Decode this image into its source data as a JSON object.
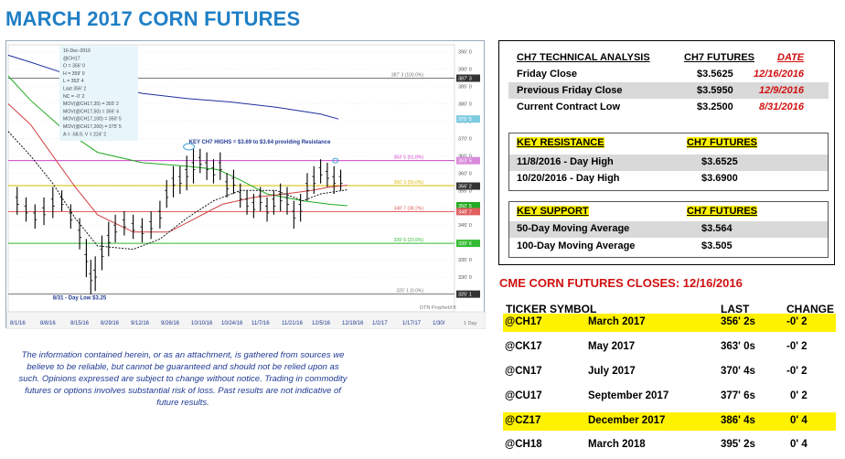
{
  "title": "MARCH 2017 CORN FUTURES",
  "chart_data": {
    "type": "candlestick",
    "symbol": "@CH17",
    "info_lines": [
      "16-Dec-2016",
      "@CH17",
      "O = 356' 0",
      "H = 359' 0",
      "L = 353' 4",
      "Last 356' 2",
      "NC = -0' 2",
      "MOV(@CH17,35) = 355' 2",
      "MOV(@CH17,50) = 356' 4",
      "MOV(@CH17,100) = 350' 5",
      "MOV(@CH17,200) = 375' 5",
      "A = -58.9, V = 224' 2"
    ],
    "y_ticks": [
      "395' 0",
      "390' 0",
      "385' 0",
      "380' 0",
      "375' 0",
      "370' 0",
      "365' 0",
      "360' 0",
      "355' 0",
      "350' 0",
      "345' 0",
      "340' 0",
      "335' 0",
      "330' 0",
      "325' 0"
    ],
    "x_ticks": [
      "8/1/16",
      "8/8/16",
      "8/15/16",
      "8/29/16",
      "9/12/16",
      "9/26/16",
      "10/10/16",
      "10/24/16",
      "11/7/16",
      "11/21/16",
      "12/5/16",
      "12/19/16",
      "1/2/17",
      "1/17/17",
      "1/30/"
    ],
    "ylim": [
      320,
      397
    ],
    "fib_levels": [
      {
        "label": "387' 3 (100.0%)",
        "value": 387.375,
        "color": "#777777"
      },
      {
        "label": "363' 5 (61.8%)",
        "value": 363.625,
        "color": "#cc44cc"
      },
      {
        "label": "356' 3 (50.0%)",
        "value": 356.375,
        "color": "#d9b800"
      },
      {
        "label": "348' 7 (38.2%)",
        "value": 348.875,
        "color": "#e06060"
      },
      {
        "label": "339' 6 (23.6%)",
        "value": 339.75,
        "color": "#33bb33"
      },
      {
        "label": "325' 1 (0.0%)",
        "value": 325.125,
        "color": "#777777"
      }
    ],
    "price_labels": [
      {
        "text": "387' 3",
        "value": 387.375,
        "color": "#333333"
      },
      {
        "text": "375' 5",
        "value": 375.6,
        "color": "#7ecbe0"
      },
      {
        "text": "363' 5",
        "value": 363.6,
        "color": "#d98ad9"
      },
      {
        "text": "356' 2",
        "value": 356.25,
        "color": "#333333"
      },
      {
        "text": "350' 5",
        "value": 350.6,
        "color": "#22aa22"
      },
      {
        "text": "348' 7",
        "value": 348.9,
        "color": "#e06060"
      },
      {
        "text": "339' 6",
        "value": 339.75,
        "color": "#33bb33"
      },
      {
        "text": "325' 1",
        "value": 325.1,
        "color": "#333333"
      }
    ],
    "moving_averages": [
      {
        "name": "MOV(@CH17,200)",
        "color": "#1f2fa0",
        "points": [
          [
            0,
            394
          ],
          [
            0.05,
            392
          ],
          [
            0.12,
            389
          ],
          [
            0.2,
            386
          ],
          [
            0.3,
            383
          ],
          [
            0.4,
            381.5
          ],
          [
            0.5,
            380.5
          ],
          [
            0.6,
            379
          ],
          [
            0.7,
            377
          ],
          [
            0.74,
            375.6
          ]
        ]
      },
      {
        "name": "MOV(@CH17,100)",
        "color": "#22aa22",
        "points": [
          [
            0,
            388
          ],
          [
            0.05,
            381
          ],
          [
            0.12,
            373
          ],
          [
            0.2,
            366
          ],
          [
            0.3,
            363
          ],
          [
            0.4,
            362
          ],
          [
            0.47,
            361
          ],
          [
            0.52,
            358
          ],
          [
            0.58,
            354
          ],
          [
            0.66,
            352
          ],
          [
            0.72,
            351
          ],
          [
            0.76,
            350.6
          ]
        ]
      },
      {
        "name": "MOV(@CH17,50)",
        "color": "#d04040",
        "points": [
          [
            0,
            380
          ],
          [
            0.05,
            374
          ],
          [
            0.1,
            365
          ],
          [
            0.15,
            356
          ],
          [
            0.2,
            348
          ],
          [
            0.28,
            343
          ],
          [
            0.36,
            343
          ],
          [
            0.42,
            347
          ],
          [
            0.48,
            351
          ],
          [
            0.55,
            353
          ],
          [
            0.62,
            354
          ],
          [
            0.68,
            355
          ],
          [
            0.72,
            356
          ],
          [
            0.76,
            356.5
          ]
        ]
      },
      {
        "name": "MOV(@CH17,35)",
        "color": "#111111",
        "points": [
          [
            0,
            372
          ],
          [
            0.05,
            365
          ],
          [
            0.1,
            357
          ],
          [
            0.15,
            347
          ],
          [
            0.2,
            339
          ],
          [
            0.28,
            338
          ],
          [
            0.34,
            341
          ],
          [
            0.4,
            347
          ],
          [
            0.46,
            352
          ],
          [
            0.52,
            355
          ],
          [
            0.6,
            355
          ],
          [
            0.66,
            352
          ],
          [
            0.7,
            354
          ],
          [
            0.76,
            355.2
          ]
        ]
      }
    ],
    "candles": [
      [
        0.02,
        348,
        356
      ],
      [
        0.04,
        346,
        353
      ],
      [
        0.06,
        344,
        351
      ],
      [
        0.08,
        345,
        353
      ],
      [
        0.1,
        347,
        356
      ],
      [
        0.12,
        349,
        355
      ],
      [
        0.14,
        344,
        351
      ],
      [
        0.16,
        338,
        347
      ],
      [
        0.175,
        330,
        341
      ],
      [
        0.185,
        325,
        335
      ],
      [
        0.195,
        326,
        336
      ],
      [
        0.21,
        332,
        342
      ],
      [
        0.225,
        336,
        346
      ],
      [
        0.24,
        340,
        348
      ],
      [
        0.26,
        342,
        349
      ],
      [
        0.28,
        341,
        348
      ],
      [
        0.3,
        340,
        347
      ],
      [
        0.32,
        341,
        349
      ],
      [
        0.34,
        344,
        352
      ],
      [
        0.355,
        350,
        358
      ],
      [
        0.37,
        353,
        362
      ],
      [
        0.385,
        354,
        362
      ],
      [
        0.4,
        355,
        365
      ],
      [
        0.415,
        357,
        367
      ],
      [
        0.43,
        360,
        367
      ],
      [
        0.445,
        358,
        366
      ],
      [
        0.46,
        357,
        364
      ],
      [
        0.475,
        358,
        366
      ],
      [
        0.49,
        353,
        360
      ],
      [
        0.505,
        354,
        361
      ],
      [
        0.52,
        350,
        357
      ],
      [
        0.535,
        348,
        355
      ],
      [
        0.55,
        347,
        354
      ],
      [
        0.565,
        349,
        356
      ],
      [
        0.58,
        346,
        353
      ],
      [
        0.595,
        348,
        355
      ],
      [
        0.61,
        349,
        357
      ],
      [
        0.625,
        348,
        356
      ],
      [
        0.64,
        344,
        352
      ],
      [
        0.655,
        346,
        354
      ],
      [
        0.67,
        352,
        360
      ],
      [
        0.685,
        354,
        362
      ],
      [
        0.7,
        357,
        364
      ],
      [
        0.715,
        356,
        363
      ],
      [
        0.73,
        354,
        362
      ],
      [
        0.745,
        355,
        361
      ]
    ],
    "annotations": [
      {
        "text": "KEY CH7 HIGHS = $3.69 to $3.64 providing Resistance",
        "x": 0.405,
        "y": 368.5
      },
      {
        "text": "8/31 - Day Low $3.25",
        "x": 0.1,
        "y": 323.5
      }
    ],
    "footer_labels": [
      "DTN  ProphetX®",
      "1 Day"
    ]
  },
  "technical": {
    "header_label": "CH7 TECHNICAL ANALYSIS",
    "header_futures": "CH7 FUTURES",
    "header_date": "DATE",
    "rows": [
      {
        "label": "Friday Close",
        "value": "$3.5625",
        "date": "12/16/2016"
      },
      {
        "label": "Previous Friday Close",
        "value": "$3.5950",
        "date": "12/9/2016"
      },
      {
        "label": "Current Contract Low",
        "value": "$3.2500",
        "date": "8/31/2016"
      }
    ],
    "resistance": {
      "header": "KEY RESISTANCE",
      "header_futures": "CH7 FUTURES",
      "rows": [
        {
          "label": "11/8/2016 - Day High",
          "value": "$3.6525"
        },
        {
          "label": "10/20/2016 - Day High",
          "value": "$3.6900"
        }
      ]
    },
    "support": {
      "header": "KEY SUPPORT",
      "header_futures": "CH7 FUTURES",
      "rows": [
        {
          "label": "50-Day Moving Average",
          "value": "$3.564"
        },
        {
          "label": "100-Day Moving Average",
          "value": "$3.505"
        }
      ]
    }
  },
  "closes": {
    "title": "CME CORN FUTURES CLOSES:  12/16/2016",
    "headers": {
      "ticker": "TICKER SYMBOL",
      "last": "LAST",
      "change": "CHANGE"
    },
    "rows": [
      {
        "ticker": "@CH17",
        "month": "March 2017",
        "last": "356' 2s",
        "change": "-0' 2",
        "highlight": true
      },
      {
        "ticker": "@CK17",
        "month": "May 2017",
        "last": "363' 0s",
        "change": "-0' 2",
        "highlight": false
      },
      {
        "ticker": "@CN17",
        "month": "July 2017",
        "last": "370' 4s",
        "change": "-0' 2",
        "highlight": false
      },
      {
        "ticker": "@CU17",
        "month": "September 2017",
        "last": "377' 6s",
        "change": "0' 2",
        "highlight": false
      },
      {
        "ticker": "@CZ17",
        "month": "December 2017",
        "last": "386' 4s",
        "change": "0' 4",
        "highlight": true
      },
      {
        "ticker": "@CH18",
        "month": "March 2018",
        "last": "395' 2s",
        "change": "0' 4",
        "highlight": false
      }
    ]
  },
  "disclaimer": "The information contained herein, or as an attachment, is gathered from sources we believe to be reliable, but cannot be guaranteed and should not be relied upon as such. Opinions expressed are subject to change without notice. Trading in commodity futures or options involves substantial risk of loss. Past results are not indicative of future results."
}
